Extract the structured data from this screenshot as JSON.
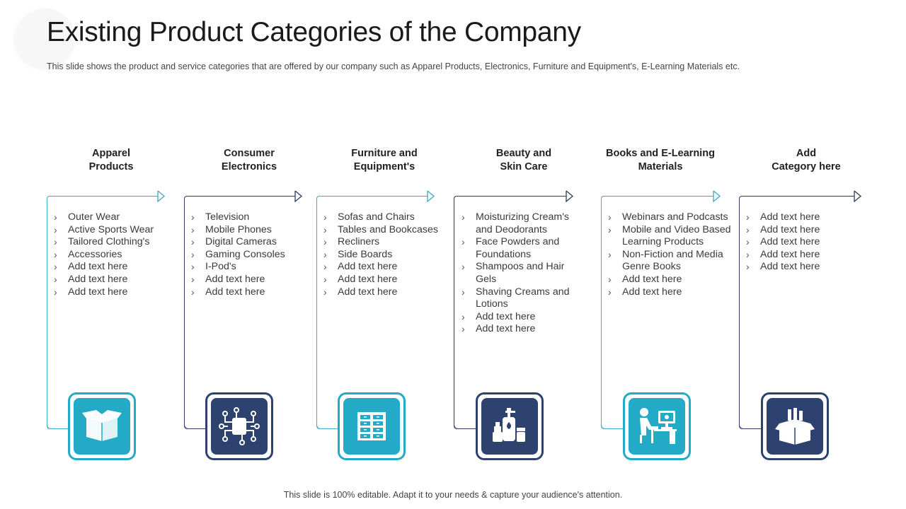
{
  "slide": {
    "title": "Existing Product Categories of the Company",
    "subtitle": "This slide shows the product and service categories that are offered by our company such as Apparel Products, Electronics, Furniture and Equipment's, E-Learning Materials etc.",
    "footer": "This slide is 100% editable. Adapt it to your needs & capture your audience's attention."
  },
  "colors": {
    "teal": "#23aac6",
    "navy": "#2e4270",
    "teal_line": "#3ba9c7",
    "navy_line": "#2e3d5c"
  },
  "categories": [
    {
      "heading": [
        "Apparel",
        "Products"
      ],
      "theme": "teal",
      "icon": "open-box-icon",
      "items": [
        "Outer Wear",
        "Active Sports Wear",
        "Tailored Clothing's",
        "Accessories",
        "Add text here",
        "Add text here",
        "Add text here"
      ]
    },
    {
      "heading": [
        "Consumer",
        "Electronics"
      ],
      "theme": "navy",
      "icon": "circuit-chip-icon",
      "items": [
        "Television",
        "Mobile Phones",
        "Digital Cameras",
        "Gaming Consoles",
        "I-Pod's",
        "Add text here",
        "Add text here"
      ]
    },
    {
      "heading": [
        "Furniture and",
        "Equipment's"
      ],
      "theme": "teal",
      "icon": "drawer-cabinet-icon",
      "items": [
        "Sofas and Chairs",
        "Tables and Bookcases",
        "Recliners",
        "Side Boards",
        "Add text here",
        "Add text here",
        "Add text here"
      ]
    },
    {
      "heading": [
        "Beauty and",
        "Skin Care"
      ],
      "theme": "navy",
      "icon": "cosmetics-bottles-icon",
      "items": [
        "Moisturizing Cream's and Deodorants",
        "Face Powders and Foundations",
        "Shampoos and Hair Gels",
        "Shaving Creams and Lotions",
        "Add text here",
        "Add text here"
      ]
    },
    {
      "heading": [
        "Books and E-Learning",
        "Materials"
      ],
      "theme": "teal",
      "icon": "person-at-computer-icon",
      "items": [
        "Webinars and Podcasts",
        "Mobile and Video Based Learning Products",
        "Non-Fiction and Media Genre Books",
        "Add text here",
        "Add text here"
      ]
    },
    {
      "heading": [
        "Add",
        "Category here"
      ],
      "theme": "navy",
      "icon": "box-with-items-icon",
      "items": [
        "Add text here",
        "Add text here",
        "Add text here",
        "Add text here",
        "Add text here"
      ]
    }
  ]
}
